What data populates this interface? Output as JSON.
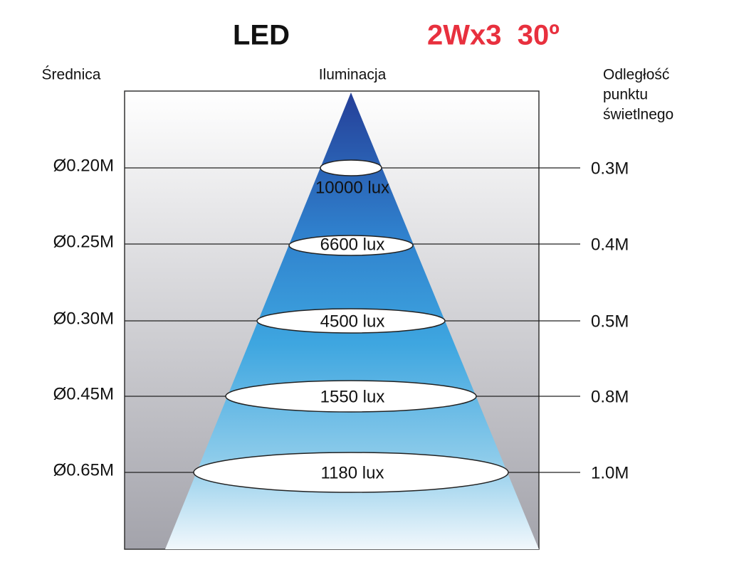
{
  "header": {
    "title": "LED",
    "spec": "2Wx3  30º"
  },
  "columns": {
    "left": "Średnica",
    "center": "Iluminacja",
    "right": [
      "Odległość",
      "punktu",
      "świetlnego"
    ]
  },
  "rows": [
    {
      "diameter": "Ø0.20M",
      "illumination": "10000 lux",
      "distance": "0.3M"
    },
    {
      "diameter": "Ø0.25M",
      "illumination": "6600 lux",
      "distance": "0.4M"
    },
    {
      "diameter": "Ø0.30M",
      "illumination": "4500 lux",
      "distance": "0.5M"
    },
    {
      "diameter": "Ø0.45M",
      "illumination": "1550 lux",
      "distance": "0.8M"
    },
    {
      "diameter": "Ø0.65M",
      "illumination": "1180 lux",
      "distance": "1.0M"
    }
  ]
}
